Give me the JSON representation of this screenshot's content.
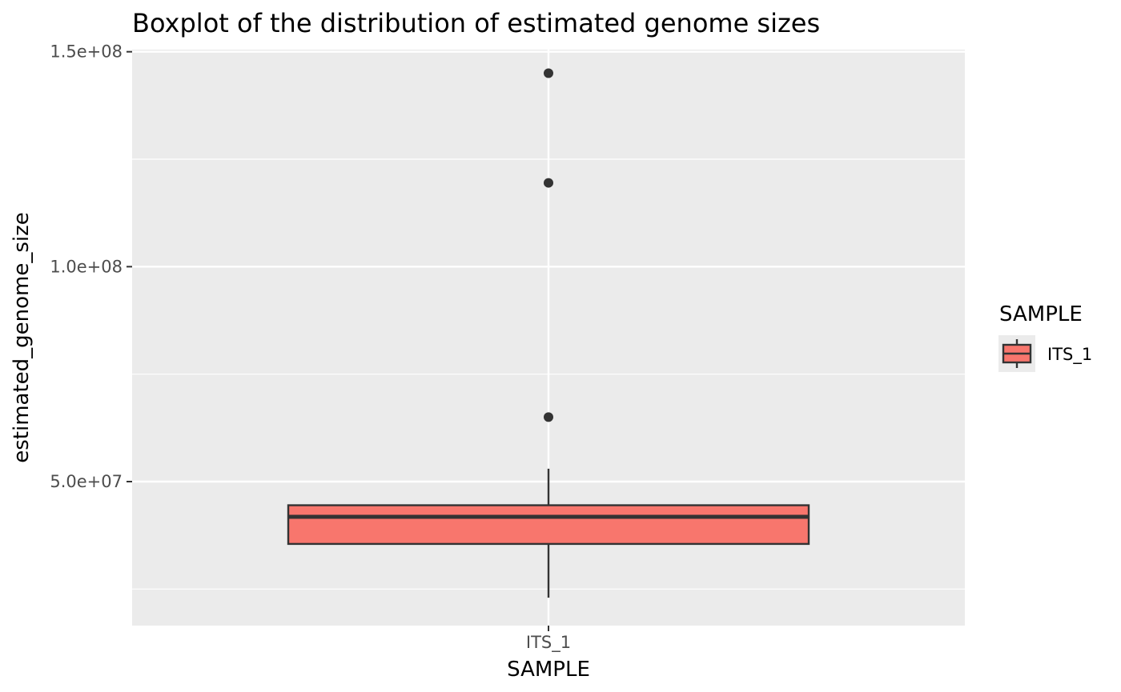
{
  "chart_data": {
    "type": "boxplot",
    "title": "Boxplot of the distribution of estimated genome sizes",
    "xlabel": "SAMPLE",
    "ylabel": "estimated_genome_size",
    "categories": [
      "ITS_1"
    ],
    "y_ticks": [
      50000000,
      100000000,
      150000000
    ],
    "y_tick_labels": [
      "5.0e+07",
      "1.0e+08",
      "1.5e+08"
    ],
    "y_minor_ticks": [
      25000000,
      75000000,
      125000000
    ],
    "ylim": [
      16500000,
      150500000
    ],
    "boxes": [
      {
        "category": "ITS_1",
        "whisker_low": 23000000,
        "q1": 35500000,
        "median": 41800000,
        "q3": 44500000,
        "whisker_high": 53000000,
        "outliers": [
          65000000,
          119500000,
          145000000
        ]
      }
    ],
    "legend": {
      "title": "SAMPLE",
      "position": "right",
      "entries": [
        {
          "label": "ITS_1",
          "color": "#f8766d"
        }
      ]
    },
    "colors": {
      "panel_background": "#ebebeb",
      "grid": "#ffffff",
      "box_fill": "#f8766d",
      "box_line": "#333333",
      "outlier": "#333333"
    },
    "grid": true
  }
}
